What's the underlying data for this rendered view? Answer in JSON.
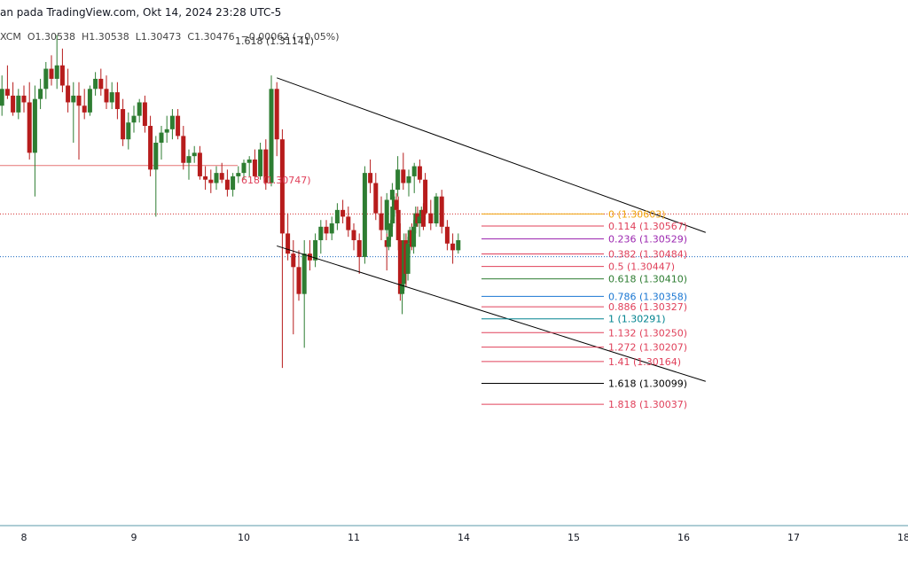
{
  "header": {
    "source_line": "an pada TradingView.com, Okt 14, 2024 23:28 UTC-5",
    "ohlc_line": "XCM  O1.30538  H1.30538  L1.30473  C1.30476  −0.00062 (−0.05%)",
    "overlay_fib_label": "1.618 (1.31141)",
    "mid_fib_label": "618 (1.30747)"
  },
  "colors": {
    "up": "#2e7d32",
    "down": "#b71c1c",
    "channel": "#000000",
    "last_price_dotted": "#d32f2f",
    "current_price_dotted": "#1565c0",
    "axis_line": "#5b9aa9"
  },
  "chart_data": {
    "type": "candlestick",
    "x_axis_labels": [
      "8",
      "9",
      "10",
      "11",
      "14",
      "15",
      "16",
      "17",
      "18"
    ],
    "ylim": [
      1.2985,
      1.3125
    ],
    "grid": false,
    "fib_levels": [
      {
        "ratio": "0",
        "price": 1.30603,
        "label": "0 (1.30603)",
        "color": "#f0a30a"
      },
      {
        "ratio": "0.114",
        "price": 1.30567,
        "label": "0.114 (1.30567)",
        "color": "#e0405a"
      },
      {
        "ratio": "0.236",
        "price": 1.30529,
        "label": "0.236 (1.30529)",
        "color": "#9c27b0"
      },
      {
        "ratio": "0.382",
        "price": 1.30484,
        "label": "0.382 (1.30484)",
        "color": "#e0405a"
      },
      {
        "ratio": "0.5",
        "price": 1.30447,
        "label": "0.5 (1.30447)",
        "color": "#e0405a"
      },
      {
        "ratio": "0.618",
        "price": 1.3041,
        "label": "0.618 (1.30410)",
        "color": "#2e7d32"
      },
      {
        "ratio": "0.786",
        "price": 1.30358,
        "label": "0.786 (1.30358)",
        "color": "#1976d2"
      },
      {
        "ratio": "0.886",
        "price": 1.30327,
        "label": "0.886 (1.30327)",
        "color": "#e0405a"
      },
      {
        "ratio": "1",
        "price": 1.30291,
        "label": "1 (1.30291)",
        "color": "#00838f"
      },
      {
        "ratio": "1.132",
        "price": 1.3025,
        "label": "1.132 (1.30250)",
        "color": "#e0405a"
      },
      {
        "ratio": "1.272",
        "price": 1.30207,
        "label": "1.272 (1.30207)",
        "color": "#e0405a"
      },
      {
        "ratio": "1.41",
        "price": 1.30164,
        "label": "1.41 (1.30164)",
        "color": "#e0405a"
      },
      {
        "ratio": "1.618",
        "price": 1.30099,
        "label": "1.618 (1.30099)",
        "color": "#000000"
      },
      {
        "ratio": "1.818",
        "price": 1.30037,
        "label": "1.818 (1.30037)",
        "color": "#e0405a"
      }
    ],
    "horizontal_levels": [
      {
        "price": 1.30747,
        "style": "solid",
        "color": "#e57373"
      },
      {
        "price": 1.30603,
        "style": "dotted",
        "color": "#d32f2f"
      },
      {
        "price": 1.30476,
        "style": "dotted",
        "color": "#1565c0"
      }
    ],
    "channel": {
      "upper": [
        {
          "day": 10.3,
          "price": 1.31008
        },
        {
          "day": 16.2,
          "price": 1.30548
        }
      ],
      "lower": [
        {
          "day": 10.3,
          "price": 1.30508
        },
        {
          "day": 16.2,
          "price": 1.30105
        }
      ]
    },
    "candles": [
      {
        "day": 7.8,
        "o": 1.30925,
        "h": 1.31015,
        "l": 1.30895,
        "c": 1.30975
      },
      {
        "day": 7.85,
        "o": 1.30975,
        "h": 1.31045,
        "l": 1.30945,
        "c": 1.30955
      },
      {
        "day": 7.9,
        "o": 1.30955,
        "h": 1.30995,
        "l": 1.30895,
        "c": 1.30905
      },
      {
        "day": 7.95,
        "o": 1.30905,
        "h": 1.30975,
        "l": 1.30885,
        "c": 1.30955
      },
      {
        "day": 8.0,
        "o": 1.30955,
        "h": 1.30985,
        "l": 1.30905,
        "c": 1.30935
      },
      {
        "day": 8.05,
        "o": 1.30935,
        "h": 1.30995,
        "l": 1.30765,
        "c": 1.30785
      },
      {
        "day": 8.1,
        "o": 1.30785,
        "h": 1.30985,
        "l": 1.30655,
        "c": 1.30945
      },
      {
        "day": 8.15,
        "o": 1.30945,
        "h": 1.31005,
        "l": 1.30915,
        "c": 1.30975
      },
      {
        "day": 8.2,
        "o": 1.30975,
        "h": 1.31055,
        "l": 1.30945,
        "c": 1.31035
      },
      {
        "day": 8.25,
        "o": 1.31035,
        "h": 1.31075,
        "l": 1.30985,
        "c": 1.31005
      },
      {
        "day": 8.3,
        "o": 1.31005,
        "h": 1.31135,
        "l": 1.30975,
        "c": 1.31045
      },
      {
        "day": 8.35,
        "o": 1.31045,
        "h": 1.31095,
        "l": 1.30965,
        "c": 1.30985
      },
      {
        "day": 8.4,
        "o": 1.30985,
        "h": 1.31035,
        "l": 1.30905,
        "c": 1.30935
      },
      {
        "day": 8.45,
        "o": 1.30935,
        "h": 1.30995,
        "l": 1.30815,
        "c": 1.30955
      },
      {
        "day": 8.5,
        "o": 1.30955,
        "h": 1.30995,
        "l": 1.30765,
        "c": 1.30925
      },
      {
        "day": 8.55,
        "o": 1.30925,
        "h": 1.30975,
        "l": 1.30885,
        "c": 1.30905
      },
      {
        "day": 8.6,
        "o": 1.30905,
        "h": 1.30985,
        "l": 1.30895,
        "c": 1.30975
      },
      {
        "day": 8.65,
        "o": 1.30975,
        "h": 1.31025,
        "l": 1.30955,
        "c": 1.31005
      },
      {
        "day": 8.7,
        "o": 1.31005,
        "h": 1.31035,
        "l": 1.30955,
        "c": 1.30975
      },
      {
        "day": 8.75,
        "o": 1.30975,
        "h": 1.31015,
        "l": 1.30915,
        "c": 1.30935
      },
      {
        "day": 8.8,
        "o": 1.30935,
        "h": 1.30995,
        "l": 1.30915,
        "c": 1.30965
      },
      {
        "day": 8.85,
        "o": 1.30965,
        "h": 1.30995,
        "l": 1.30885,
        "c": 1.30915
      },
      {
        "day": 8.9,
        "o": 1.30915,
        "h": 1.30945,
        "l": 1.30805,
        "c": 1.30825
      },
      {
        "day": 8.95,
        "o": 1.30825,
        "h": 1.30905,
        "l": 1.30795,
        "c": 1.30875
      },
      {
        "day": 9.0,
        "o": 1.30875,
        "h": 1.30925,
        "l": 1.30845,
        "c": 1.30895
      },
      {
        "day": 9.05,
        "o": 1.30895,
        "h": 1.30945,
        "l": 1.30875,
        "c": 1.30935
      },
      {
        "day": 9.1,
        "o": 1.30935,
        "h": 1.30955,
        "l": 1.30845,
        "c": 1.30865
      },
      {
        "day": 9.15,
        "o": 1.30865,
        "h": 1.30895,
        "l": 1.30715,
        "c": 1.30735
      },
      {
        "day": 9.2,
        "o": 1.30735,
        "h": 1.30835,
        "l": 1.30595,
        "c": 1.30815
      },
      {
        "day": 9.25,
        "o": 1.30815,
        "h": 1.30865,
        "l": 1.30765,
        "c": 1.30845
      },
      {
        "day": 9.3,
        "o": 1.30845,
        "h": 1.30895,
        "l": 1.30815,
        "c": 1.30855
      },
      {
        "day": 9.35,
        "o": 1.30855,
        "h": 1.30915,
        "l": 1.30825,
        "c": 1.30895
      },
      {
        "day": 9.4,
        "o": 1.30895,
        "h": 1.30915,
        "l": 1.30825,
        "c": 1.30835
      },
      {
        "day": 9.45,
        "o": 1.30835,
        "h": 1.30865,
        "l": 1.30735,
        "c": 1.30755
      },
      {
        "day": 9.5,
        "o": 1.30755,
        "h": 1.30795,
        "l": 1.30705,
        "c": 1.30775
      },
      {
        "day": 9.55,
        "o": 1.30775,
        "h": 1.30805,
        "l": 1.30755,
        "c": 1.30785
      },
      {
        "day": 9.6,
        "o": 1.30785,
        "h": 1.30805,
        "l": 1.30705,
        "c": 1.30715
      },
      {
        "day": 9.65,
        "o": 1.30715,
        "h": 1.30745,
        "l": 1.30675,
        "c": 1.30705
      },
      {
        "day": 9.7,
        "o": 1.30705,
        "h": 1.30735,
        "l": 1.30665,
        "c": 1.30695
      },
      {
        "day": 9.75,
        "o": 1.30695,
        "h": 1.30745,
        "l": 1.30675,
        "c": 1.30725
      },
      {
        "day": 9.8,
        "o": 1.30725,
        "h": 1.30755,
        "l": 1.30695,
        "c": 1.30705
      },
      {
        "day": 9.85,
        "o": 1.30705,
        "h": 1.30735,
        "l": 1.30655,
        "c": 1.30675
      },
      {
        "day": 9.9,
        "o": 1.30675,
        "h": 1.30725,
        "l": 1.30655,
        "c": 1.30715
      },
      {
        "day": 9.95,
        "o": 1.30715,
        "h": 1.30745,
        "l": 1.30695,
        "c": 1.30725
      },
      {
        "day": 10.0,
        "o": 1.30725,
        "h": 1.30765,
        "l": 1.30705,
        "c": 1.30755
      },
      {
        "day": 10.05,
        "o": 1.30755,
        "h": 1.30775,
        "l": 1.30715,
        "c": 1.30765
      },
      {
        "day": 10.1,
        "o": 1.30765,
        "h": 1.30795,
        "l": 1.30705,
        "c": 1.30715
      },
      {
        "day": 10.15,
        "o": 1.30715,
        "h": 1.30815,
        "l": 1.30705,
        "c": 1.30795
      },
      {
        "day": 10.2,
        "o": 1.30795,
        "h": 1.30825,
        "l": 1.30675,
        "c": 1.30695
      },
      {
        "day": 10.25,
        "o": 1.30695,
        "h": 1.31015,
        "l": 1.30685,
        "c": 1.30975
      },
      {
        "day": 10.3,
        "o": 1.30975,
        "h": 1.30995,
        "l": 1.30775,
        "c": 1.30825
      },
      {
        "day": 10.35,
        "o": 1.30825,
        "h": 1.30855,
        "l": 1.30145,
        "c": 1.30545
      },
      {
        "day": 10.4,
        "o": 1.30545,
        "h": 1.30605,
        "l": 1.30465,
        "c": 1.30485
      },
      {
        "day": 10.45,
        "o": 1.30485,
        "h": 1.30525,
        "l": 1.30245,
        "c": 1.30445
      },
      {
        "day": 10.5,
        "o": 1.30445,
        "h": 1.30495,
        "l": 1.30345,
        "c": 1.30365
      },
      {
        "day": 10.55,
        "o": 1.30365,
        "h": 1.30525,
        "l": 1.30205,
        "c": 1.30485
      },
      {
        "day": 10.6,
        "o": 1.30485,
        "h": 1.30525,
        "l": 1.30435,
        "c": 1.30465
      },
      {
        "day": 10.65,
        "o": 1.30465,
        "h": 1.30545,
        "l": 1.30445,
        "c": 1.30525
      },
      {
        "day": 10.7,
        "o": 1.30525,
        "h": 1.30585,
        "l": 1.30485,
        "c": 1.30565
      },
      {
        "day": 10.75,
        "o": 1.30565,
        "h": 1.30585,
        "l": 1.30525,
        "c": 1.30545
      },
      {
        "day": 10.8,
        "o": 1.30545,
        "h": 1.30595,
        "l": 1.30525,
        "c": 1.30575
      },
      {
        "day": 10.85,
        "o": 1.30575,
        "h": 1.30635,
        "l": 1.30555,
        "c": 1.30615
      },
      {
        "day": 10.9,
        "o": 1.30615,
        "h": 1.30645,
        "l": 1.30575,
        "c": 1.30595
      },
      {
        "day": 10.95,
        "o": 1.30595,
        "h": 1.30625,
        "l": 1.30535,
        "c": 1.30555
      },
      {
        "day": 11.0,
        "o": 1.30555,
        "h": 1.30575,
        "l": 1.30495,
        "c": 1.30525
      },
      {
        "day": 11.05,
        "o": 1.30525,
        "h": 1.30545,
        "l": 1.30425,
        "c": 1.30475
      },
      {
        "day": 11.1,
        "o": 1.30475,
        "h": 1.30745,
        "l": 1.30455,
        "c": 1.30725
      },
      {
        "day": 11.15,
        "o": 1.30725,
        "h": 1.30765,
        "l": 1.30665,
        "c": 1.30695
      },
      {
        "day": 11.2,
        "o": 1.30695,
        "h": 1.30725,
        "l": 1.30585,
        "c": 1.30605
      },
      {
        "day": 11.25,
        "o": 1.30605,
        "h": 1.30655,
        "l": 1.30525,
        "c": 1.30555
      },
      {
        "day": 11.3,
        "o": 1.30555,
        "h": 1.30665,
        "l": 1.30545,
        "c": 1.30645
      },
      {
        "day": 11.35,
        "o": 1.30645,
        "h": 1.30695,
        "l": 1.30615,
        "c": 1.30675
      },
      {
        "day": 11.4,
        "o": 1.30675,
        "h": 1.30775,
        "l": 1.30655,
        "c": 1.30735
      },
      {
        "day": 11.45,
        "o": 1.30735,
        "h": 1.30785,
        "l": 1.30675,
        "c": 1.30695
      },
      {
        "day": 11.5,
        "o": 1.30695,
        "h": 1.30735,
        "l": 1.30655,
        "c": 1.30715
      },
      {
        "day": 11.55,
        "o": 1.30715,
        "h": 1.30755,
        "l": 1.30665,
        "c": 1.30745
      },
      {
        "day": 11.6,
        "o": 1.30745,
        "h": 1.30765,
        "l": 1.30695,
        "c": 1.30705
      },
      {
        "day": 11.65,
        "o": 1.30705,
        "h": 1.30725,
        "l": 1.30585,
        "c": 1.30605
      },
      {
        "day": 11.7,
        "o": 1.30605,
        "h": 1.30645,
        "l": 1.30555,
        "c": 1.30575
      },
      {
        "day": 11.75,
        "o": 1.30575,
        "h": 1.30665,
        "l": 1.30565,
        "c": 1.30655
      },
      {
        "day": 11.8,
        "o": 1.30655,
        "h": 1.30675,
        "l": 1.30545,
        "c": 1.30565
      },
      {
        "day": 11.85,
        "o": 1.30565,
        "h": 1.30585,
        "l": 1.30495,
        "c": 1.30515
      },
      {
        "day": 11.9,
        "o": 1.30515,
        "h": 1.30545,
        "l": 1.30455,
        "c": 1.30495
      },
      {
        "day": 11.95,
        "o": 1.30495,
        "h": 1.30545,
        "l": 1.30485,
        "c": 1.30525
      },
      {
        "day": 12.0,
        "o": 1.30525,
        "h": 1.30545,
        "l": 1.30435,
        "c": 1.30505
      },
      {
        "day": 12.05,
        "o": 1.30505,
        "h": 1.30555,
        "l": 1.30495,
        "c": 1.30535
      },
      {
        "day": 12.1,
        "o": 1.30535,
        "h": 1.30585,
        "l": 1.30525,
        "c": 1.30575
      },
      {
        "day": 12.15,
        "o": 1.30575,
        "h": 1.30645,
        "l": 1.30565,
        "c": 1.30625
      },
      {
        "day": 12.2,
        "o": 1.30625,
        "h": 1.30655,
        "l": 1.30595,
        "c": 1.30645
      },
      {
        "day": 12.25,
        "o": 1.30645,
        "h": 1.30665,
        "l": 1.30605,
        "c": 1.30615
      },
      {
        "day": 12.3,
        "o": 1.30615,
        "h": 1.30655,
        "l": 1.30495,
        "c": 1.30525
      },
      {
        "day": 12.35,
        "o": 1.30525,
        "h": 1.30575,
        "l": 1.30345,
        "c": 1.30365
      },
      {
        "day": 12.4,
        "o": 1.30365,
        "h": 1.30415,
        "l": 1.30305,
        "c": 1.30395
      },
      {
        "day": 12.45,
        "o": 1.30395,
        "h": 1.30545,
        "l": 1.30375,
        "c": 1.30525
      },
      {
        "day": 12.5,
        "o": 1.30525,
        "h": 1.30545,
        "l": 1.30385,
        "c": 1.30425
      },
      {
        "day": 12.55,
        "o": 1.30425,
        "h": 1.30535,
        "l": 1.30405,
        "c": 1.30515
      },
      {
        "day": 12.6,
        "o": 1.30515,
        "h": 1.30565,
        "l": 1.30485,
        "c": 1.30555
      },
      {
        "day": 12.65,
        "o": 1.30555,
        "h": 1.30575,
        "l": 1.30495,
        "c": 1.30505
      },
      {
        "day": 12.7,
        "o": 1.30505,
        "h": 1.30585,
        "l": 1.30485,
        "c": 1.30565
      },
      {
        "day": 12.75,
        "o": 1.30565,
        "h": 1.30625,
        "l": 1.30545,
        "c": 1.30605
      },
      {
        "day": 12.8,
        "o": 1.30605,
        "h": 1.30625,
        "l": 1.30565,
        "c": 1.30575
      },
      {
        "day": 12.85,
        "o": 1.30575,
        "h": 1.30605,
        "l": 1.30535,
        "c": 1.30595
      },
      {
        "day": 12.9,
        "o": 1.30595,
        "h": 1.30625,
        "l": 1.30565,
        "c": 1.30615
      },
      {
        "day": 12.95,
        "o": 1.30615,
        "h": 1.30635,
        "l": 1.30555,
        "c": 1.30565
      }
    ]
  }
}
